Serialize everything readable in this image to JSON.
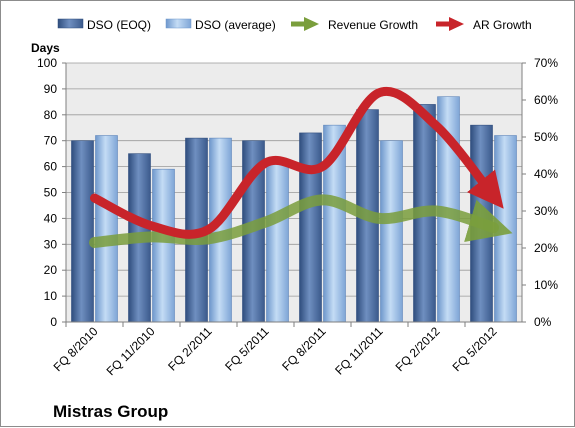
{
  "chart_data": {
    "type": "bar",
    "company": "Mistras Group",
    "y_left_unit": "Days",
    "ylim_left": [
      0,
      100
    ],
    "y_left_ticks": [
      "0",
      "10",
      "20",
      "30",
      "40",
      "50",
      "60",
      "70",
      "80",
      "90",
      "100"
    ],
    "ylim_right": [
      0,
      0.7
    ],
    "y_right_ticks": [
      "0%",
      "10%",
      "20%",
      "30%",
      "40%",
      "50%",
      "60%",
      "70%"
    ],
    "categories": [
      "FQ 8/2010",
      "FQ 11/2010",
      "FQ 2/2011",
      "FQ 5/2011",
      "FQ 8/2011",
      "FQ 11/2011",
      "FQ 2/2012",
      "FQ 5/2012"
    ],
    "bar_series": [
      {
        "name": "DSO (EOQ)",
        "axis": "left",
        "values": [
          70,
          65,
          71,
          70,
          73,
          82,
          84,
          76
        ]
      },
      {
        "name": "DSO (average)",
        "axis": "right_bar",
        "values": [
          72,
          59,
          71,
          63,
          76,
          70,
          87,
          72
        ]
      }
    ],
    "line_series": [
      {
        "name": "Revenue Growth",
        "axis": "right",
        "values": [
          0.215,
          0.23,
          0.225,
          0.27,
          0.33,
          0.28,
          0.3,
          0.255
        ]
      },
      {
        "name": "AR Growth",
        "axis": "right",
        "values": [
          0.335,
          0.26,
          0.25,
          0.43,
          0.42,
          0.62,
          0.53,
          0.34
        ]
      }
    ],
    "colors": {
      "dso_eoq": "#4a6a9e",
      "dso_avg": "#8fb4e3",
      "revenue_growth": "#7a9e3c",
      "ar_growth": "#c8242a",
      "plot_bg": "#ececec",
      "grid": "#9a9a9a"
    },
    "grid": true,
    "legend_position": "top"
  }
}
